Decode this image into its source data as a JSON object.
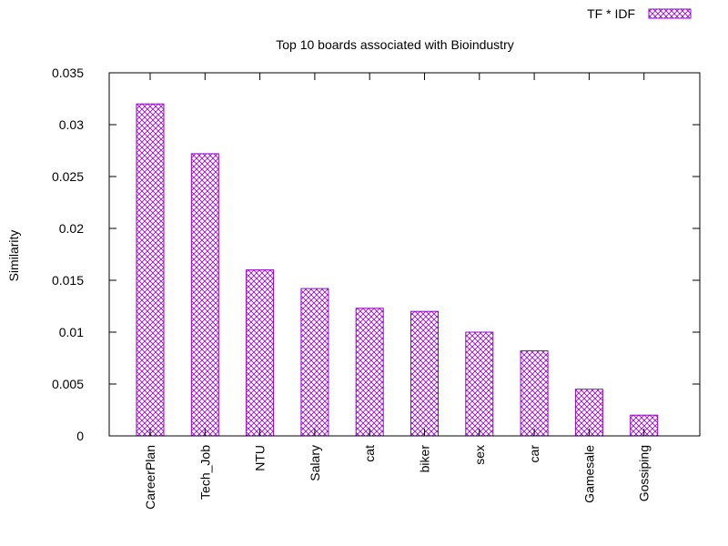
{
  "chart_data": {
    "type": "bar",
    "title": "Top 10 boards associated with Bioindustry",
    "xlabel": "",
    "ylabel": "Similarity",
    "ylim": [
      0,
      0.035
    ],
    "yticks": [
      "0",
      "0.005",
      "0.01",
      "0.015",
      "0.02",
      "0.025",
      "0.03",
      "0.035"
    ],
    "categories": [
      "CareerPlan",
      "Tech_Job",
      "NTU",
      "Salary",
      "cat",
      "biker",
      "sex",
      "car",
      "Gamesale",
      "Gossiping"
    ],
    "series": [
      {
        "name": "TF * IDF",
        "values": [
          0.032,
          0.0272,
          0.016,
          0.0142,
          0.0123,
          0.012,
          0.01,
          0.0082,
          0.0045,
          0.002
        ]
      }
    ],
    "legend_position": "top-right",
    "grid": false,
    "colors": {
      "bar": "#9400d3",
      "axis": "#000000"
    }
  }
}
